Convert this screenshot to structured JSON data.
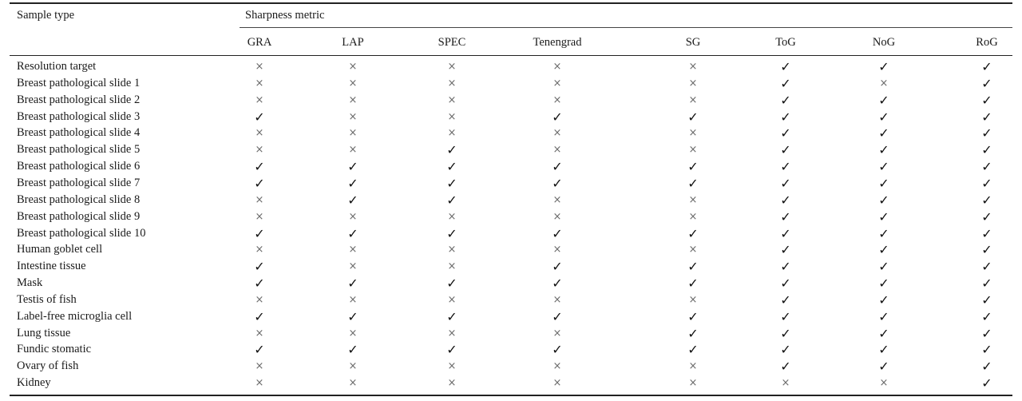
{
  "table": {
    "header": {
      "sample_type": "Sample type",
      "group_title": "Sharpness metric",
      "metrics": [
        "GRA",
        "LAP",
        "SPEC",
        "Tenengrad",
        "SG",
        "ToG",
        "NoG",
        "RoG"
      ]
    },
    "marks": {
      "yes": "✓",
      "no": "×"
    },
    "rows": [
      {
        "name": "Resolution target",
        "values": [
          0,
          0,
          0,
          0,
          0,
          1,
          1,
          1
        ]
      },
      {
        "name": "Breast pathological slide 1",
        "values": [
          0,
          0,
          0,
          0,
          0,
          1,
          0,
          1
        ]
      },
      {
        "name": "Breast pathological slide 2",
        "values": [
          0,
          0,
          0,
          0,
          0,
          1,
          1,
          1
        ]
      },
      {
        "name": "Breast pathological slide 3",
        "values": [
          1,
          0,
          0,
          1,
          1,
          1,
          1,
          1
        ]
      },
      {
        "name": "Breast pathological slide 4",
        "values": [
          0,
          0,
          0,
          0,
          0,
          1,
          1,
          1
        ]
      },
      {
        "name": "Breast pathological slide 5",
        "values": [
          0,
          0,
          1,
          0,
          0,
          1,
          1,
          1
        ]
      },
      {
        "name": "Breast pathological slide 6",
        "values": [
          1,
          1,
          1,
          1,
          1,
          1,
          1,
          1
        ]
      },
      {
        "name": "Breast pathological slide 7",
        "values": [
          1,
          1,
          1,
          1,
          1,
          1,
          1,
          1
        ]
      },
      {
        "name": "Breast pathological slide 8",
        "values": [
          0,
          1,
          1,
          0,
          0,
          1,
          1,
          1
        ]
      },
      {
        "name": "Breast pathological slide 9",
        "values": [
          0,
          0,
          0,
          0,
          0,
          1,
          1,
          1
        ]
      },
      {
        "name": "Breast pathological slide 10",
        "values": [
          1,
          1,
          1,
          1,
          1,
          1,
          1,
          1
        ]
      },
      {
        "name": "Human goblet cell",
        "values": [
          0,
          0,
          0,
          0,
          0,
          1,
          1,
          1
        ]
      },
      {
        "name": "Intestine tissue",
        "values": [
          1,
          0,
          0,
          1,
          1,
          1,
          1,
          1
        ]
      },
      {
        "name": "Mask",
        "values": [
          1,
          1,
          1,
          1,
          1,
          1,
          1,
          1
        ]
      },
      {
        "name": "Testis of fish",
        "values": [
          0,
          0,
          0,
          0,
          0,
          1,
          1,
          1
        ]
      },
      {
        "name": "Label-free microglia cell",
        "values": [
          1,
          1,
          1,
          1,
          1,
          1,
          1,
          1
        ]
      },
      {
        "name": "Lung tissue",
        "values": [
          0,
          0,
          0,
          0,
          1,
          1,
          1,
          1
        ]
      },
      {
        "name": "Fundic stomatic",
        "values": [
          1,
          1,
          1,
          1,
          1,
          1,
          1,
          1
        ]
      },
      {
        "name": "Ovary of fish",
        "values": [
          0,
          0,
          0,
          0,
          0,
          1,
          1,
          1
        ]
      },
      {
        "name": "Kidney",
        "values": [
          0,
          0,
          0,
          0,
          0,
          0,
          0,
          1
        ]
      }
    ]
  }
}
